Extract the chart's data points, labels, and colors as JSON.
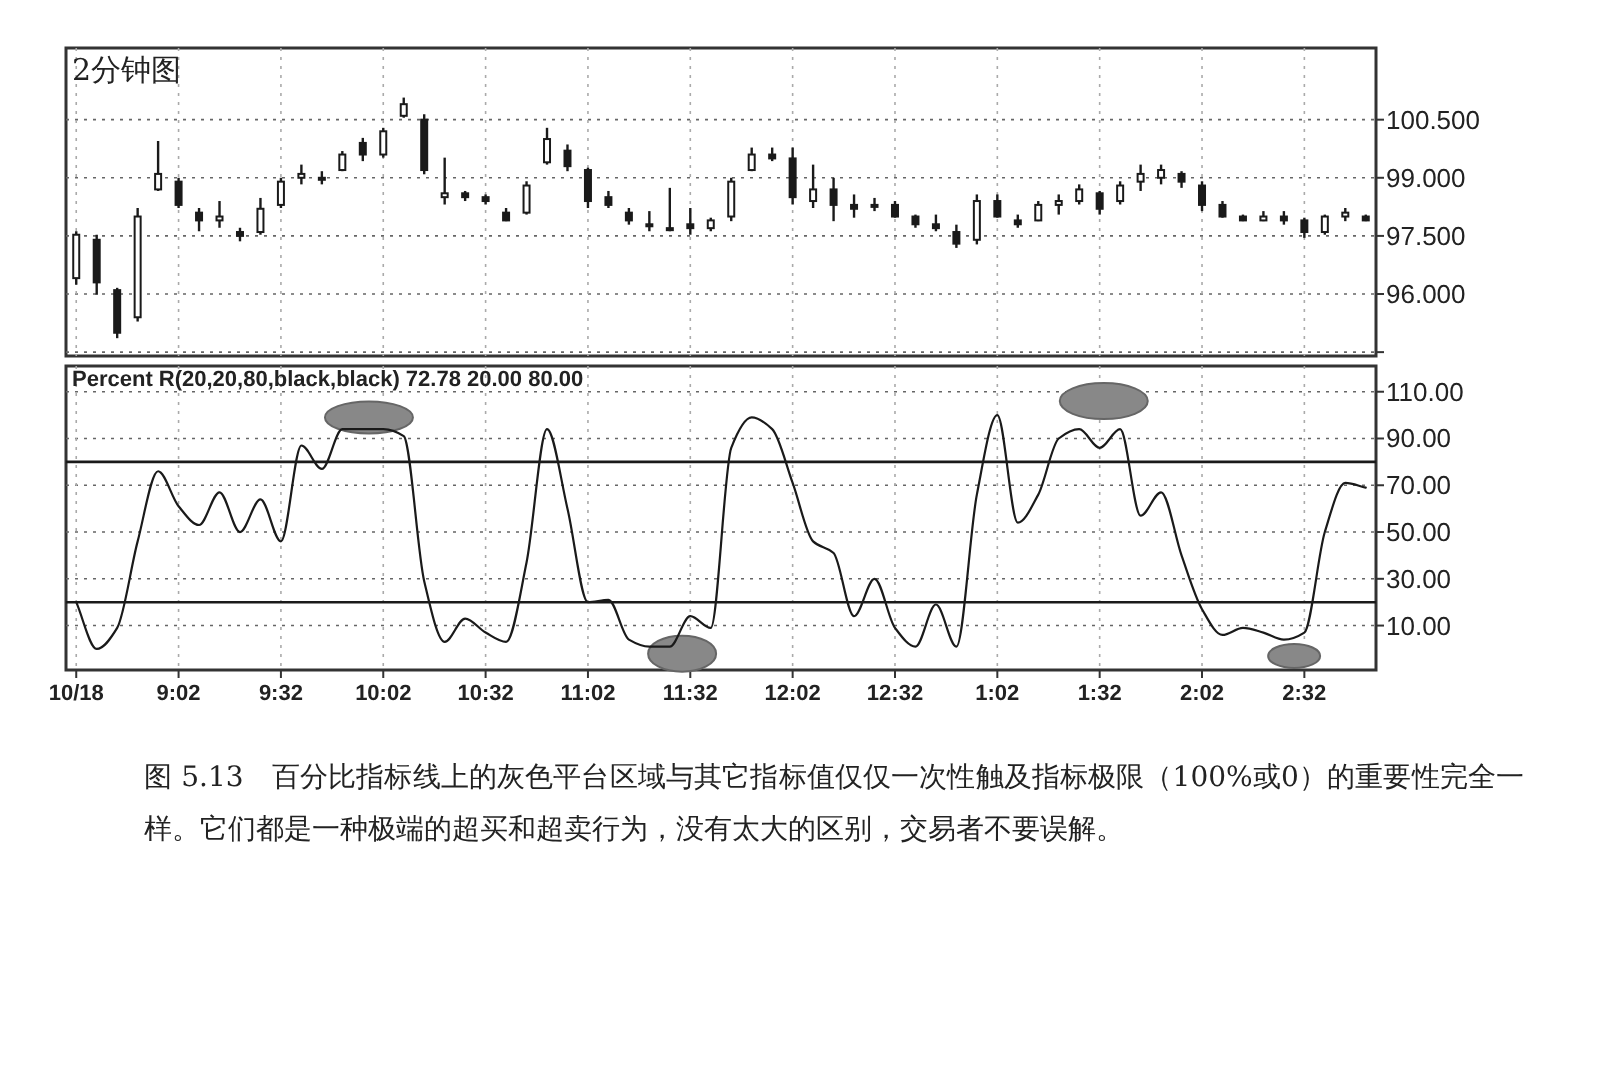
{
  "chart_data": [
    {
      "type": "candlestick",
      "title": "2分钟图",
      "grid": true,
      "tick_labels": "y",
      "categories": [
        null,
        null,
        null,
        null,
        null,
        null,
        null,
        null,
        null,
        null,
        null,
        null,
        null,
        null,
        null,
        null,
        null,
        null,
        null,
        null,
        null,
        null,
        null,
        null,
        null,
        null,
        null,
        null,
        null,
        null,
        null,
        null,
        null,
        null,
        null,
        null,
        null,
        null,
        null,
        null,
        null,
        null,
        null,
        null,
        null,
        null,
        null,
        null,
        null,
        null,
        null,
        null,
        null,
        null,
        null,
        null,
        null,
        null,
        null,
        null,
        null,
        null,
        null,
        null
      ],
      "color": "#1a1a1a",
      "ylim": [
        94.4,
        102.35
      ],
      "yticks": [
        {
          "value": 94.5,
          "label": null
        },
        {
          "value": 96,
          "label": "96.000"
        },
        {
          "value": 97.5,
          "label": "97.500"
        },
        {
          "value": 99,
          "label": "99.000"
        },
        {
          "value": 100.5,
          "label": "100.500"
        }
      ],
      "ohlc": [
        [
          96.41,
          97.62,
          96.24,
          97.53
        ],
        [
          97.4,
          97.53,
          95.98,
          96.3
        ],
        [
          96.1,
          96.16,
          94.86,
          95.0
        ],
        [
          95.4,
          98.22,
          95.29,
          98.0
        ],
        [
          98.7,
          99.95,
          98.66,
          99.1
        ],
        [
          98.9,
          99.0,
          98.22,
          98.3
        ],
        [
          98.1,
          98.22,
          97.62,
          97.9
        ],
        [
          97.9,
          98.4,
          97.71,
          98.0
        ],
        [
          97.6,
          97.71,
          97.36,
          97.5
        ],
        [
          97.6,
          98.48,
          97.53,
          98.2
        ],
        [
          98.3,
          99.0,
          98.22,
          98.9
        ],
        [
          99.0,
          99.34,
          98.83,
          99.1
        ],
        [
          99.0,
          99.17,
          98.83,
          99.0
        ],
        [
          99.2,
          99.69,
          99.17,
          99.6
        ],
        [
          99.9,
          100.03,
          99.43,
          99.6
        ],
        [
          99.6,
          100.29,
          99.52,
          100.2
        ],
        [
          100.6,
          101.07,
          100.55,
          100.9
        ],
        [
          100.5,
          100.64,
          99.09,
          99.2
        ],
        [
          98.5,
          99.52,
          98.31,
          98.6
        ],
        [
          98.6,
          98.66,
          98.4,
          98.5
        ],
        [
          98.5,
          98.57,
          98.31,
          98.4
        ],
        [
          98.1,
          98.22,
          97.88,
          97.9
        ],
        [
          98.1,
          98.91,
          98.05,
          98.8
        ],
        [
          99.4,
          100.29,
          99.34,
          100.0
        ],
        [
          99.7,
          99.86,
          99.17,
          99.3
        ],
        [
          99.2,
          99.26,
          98.22,
          98.4
        ],
        [
          98.5,
          98.66,
          98.22,
          98.3
        ],
        [
          98.1,
          98.22,
          97.79,
          97.9
        ],
        [
          97.8,
          98.14,
          97.62,
          97.8
        ],
        [
          97.7,
          98.74,
          97.62,
          97.7
        ],
        [
          97.8,
          98.22,
          97.53,
          97.7
        ],
        [
          97.7,
          97.97,
          97.62,
          97.9
        ],
        [
          98.0,
          99.0,
          97.88,
          98.9
        ],
        [
          99.2,
          99.78,
          99.17,
          99.6
        ],
        [
          99.6,
          99.78,
          99.43,
          99.5
        ],
        [
          99.5,
          99.78,
          98.31,
          98.5
        ],
        [
          98.4,
          99.34,
          98.22,
          98.7
        ],
        [
          98.7,
          99.0,
          97.88,
          98.3
        ],
        [
          98.3,
          98.57,
          97.97,
          98.2
        ],
        [
          98.3,
          98.48,
          98.14,
          98.3
        ],
        [
          98.3,
          98.4,
          97.97,
          98.0
        ],
        [
          98.0,
          98.05,
          97.71,
          97.8
        ],
        [
          97.8,
          98.05,
          97.62,
          97.7
        ],
        [
          97.6,
          97.79,
          97.19,
          97.3
        ],
        [
          97.4,
          98.57,
          97.28,
          98.4
        ],
        [
          98.4,
          98.57,
          97.97,
          98.0
        ],
        [
          97.9,
          98.05,
          97.71,
          97.8
        ],
        [
          97.9,
          98.4,
          97.88,
          98.3
        ],
        [
          98.3,
          98.57,
          98.05,
          98.4
        ],
        [
          98.4,
          98.83,
          98.31,
          98.7
        ],
        [
          98.6,
          98.66,
          98.05,
          98.2
        ],
        [
          98.4,
          98.91,
          98.31,
          98.8
        ],
        [
          98.9,
          99.34,
          98.66,
          99.1
        ],
        [
          99.0,
          99.34,
          98.83,
          99.2
        ],
        [
          99.1,
          99.17,
          98.74,
          98.9
        ],
        [
          98.8,
          98.91,
          98.14,
          98.3
        ],
        [
          98.3,
          98.4,
          97.97,
          98.0
        ],
        [
          98.0,
          98.05,
          97.88,
          97.9
        ],
        [
          97.9,
          98.14,
          97.88,
          98.0
        ],
        [
          98.0,
          98.14,
          97.79,
          97.9
        ],
        [
          97.9,
          97.97,
          97.45,
          97.6
        ],
        [
          97.6,
          98.05,
          97.53,
          98.0
        ],
        [
          98.0,
          98.22,
          97.88,
          98.1
        ],
        [
          98.0,
          98.05,
          97.88,
          97.9
        ]
      ]
    },
    {
      "type": "line",
      "title": "Percent R(20,20,80,black,black)  72.78  20.00  80.00",
      "grid": true,
      "categories": [
        "10/18",
        null,
        null,
        null,
        null,
        "9:02",
        null,
        null,
        null,
        null,
        "9:32",
        null,
        null,
        null,
        null,
        "10:02",
        null,
        null,
        null,
        null,
        "10:32",
        null,
        null,
        null,
        null,
        "11:02",
        null,
        null,
        null,
        null,
        "11:32",
        null,
        null,
        null,
        null,
        "12:02",
        null,
        null,
        null,
        null,
        "12:32",
        null,
        null,
        null,
        null,
        "1:02",
        null,
        null,
        null,
        null,
        "1:32",
        null,
        null,
        null,
        null,
        "2:02",
        null,
        null,
        null,
        null,
        "2:32",
        null,
        null,
        null
      ],
      "color": "#1a1a1a",
      "values": [
        20,
        0,
        9,
        46,
        76,
        61,
        53,
        67,
        50,
        64,
        46,
        87,
        77,
        94,
        94,
        94,
        91,
        29,
        3,
        13,
        7,
        3,
        37,
        94,
        60,
        20,
        21,
        4,
        1,
        1,
        14,
        9,
        86,
        99,
        94,
        71,
        46,
        41,
        14,
        30,
        9,
        1,
        19,
        1,
        66,
        100,
        54,
        66,
        90,
        94,
        86,
        94,
        57,
        67,
        40,
        17,
        6,
        9,
        7,
        4,
        7,
        50,
        71,
        69
      ],
      "ylim": [
        -9,
        121
      ],
      "yticks": [
        {
          "value": 10,
          "label": "10.00"
        },
        {
          "value": 30,
          "label": "30.00"
        },
        {
          "value": 50,
          "label": "50.00"
        },
        {
          "value": 70,
          "label": "70.00"
        },
        {
          "value": 90,
          "label": "90.00"
        },
        {
          "value": 110,
          "label": "110.00"
        }
      ],
      "ref_lines": [
        {
          "axis": "y",
          "value": 20,
          "color": "#1a1a1a"
        },
        {
          "axis": "y",
          "value": 80,
          "color": "#1a1a1a"
        }
      ],
      "annotations": [
        "图 5.13　百分比指标线上的灰色平台区域与其它指标值仅仅一次性触及指标极限（100%或0）的重要性完全一样。它们都是一种极端的超买和超卖行为，没有太大的区别，交易者不要误解。"
      ]
    }
  ]
}
